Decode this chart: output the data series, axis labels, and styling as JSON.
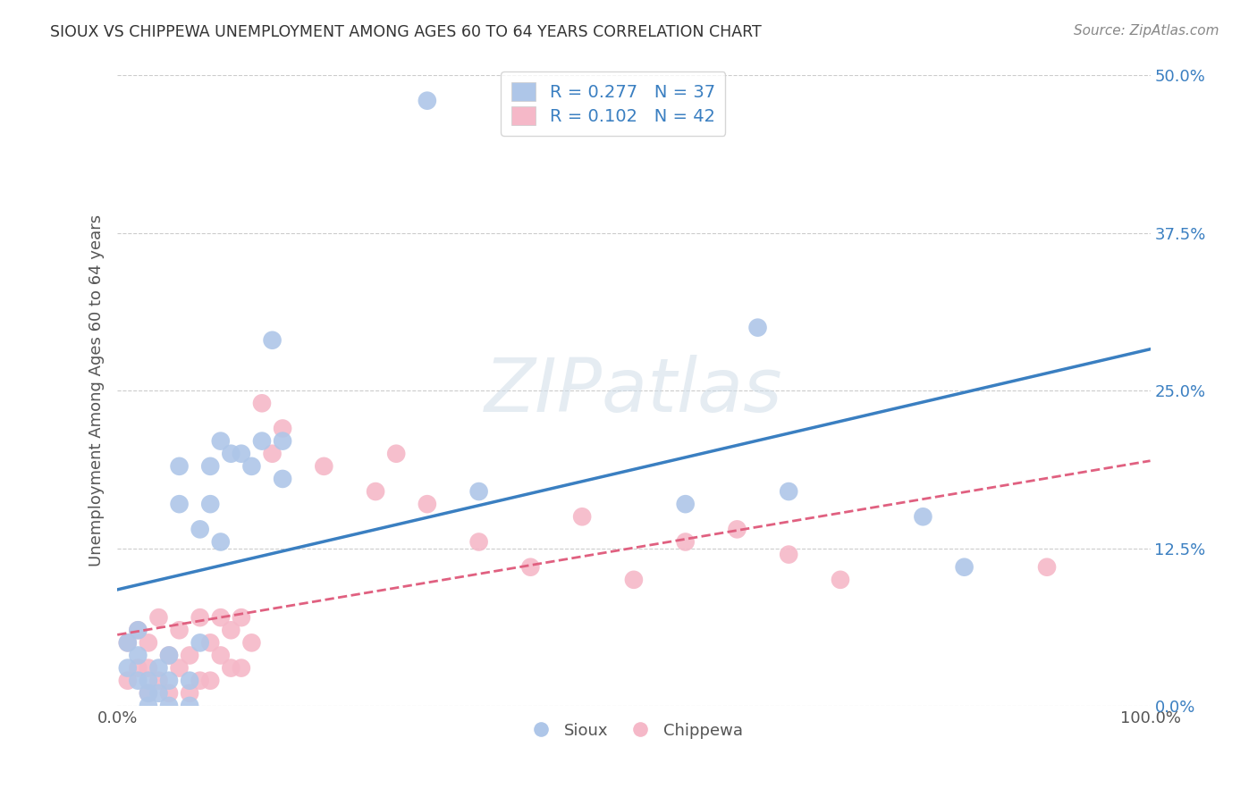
{
  "title": "SIOUX VS CHIPPEWA UNEMPLOYMENT AMONG AGES 60 TO 64 YEARS CORRELATION CHART",
  "source": "Source: ZipAtlas.com",
  "ylabel": "Unemployment Among Ages 60 to 64 years",
  "xlim": [
    0,
    1.0
  ],
  "ylim": [
    0,
    0.5
  ],
  "ytick_labels": [
    "0.0%",
    "12.5%",
    "25.0%",
    "37.5%",
    "50.0%"
  ],
  "ytick_vals": [
    0.0,
    0.125,
    0.25,
    0.375,
    0.5
  ],
  "xtick_labels": [
    "0.0%",
    "100.0%"
  ],
  "xtick_vals": [
    0.0,
    1.0
  ],
  "background_color": "#ffffff",
  "grid_color": "#cccccc",
  "watermark_text": "ZIPatlas",
  "sioux_color": "#aec6e8",
  "sioux_line_color": "#3a7fc1",
  "chippewa_color": "#f5b8c8",
  "chippewa_line_color": "#e06080",
  "legend_text_color": "#3a7fc1",
  "sioux_R": 0.277,
  "sioux_N": 37,
  "chippewa_R": 0.102,
  "chippewa_N": 42,
  "sioux_x": [
    0.01,
    0.01,
    0.02,
    0.02,
    0.02,
    0.03,
    0.03,
    0.03,
    0.04,
    0.04,
    0.05,
    0.05,
    0.05,
    0.06,
    0.06,
    0.07,
    0.07,
    0.08,
    0.08,
    0.09,
    0.09,
    0.1,
    0.1,
    0.11,
    0.12,
    0.13,
    0.14,
    0.15,
    0.16,
    0.16,
    0.3,
    0.35,
    0.55,
    0.62,
    0.65,
    0.78,
    0.82
  ],
  "sioux_y": [
    0.03,
    0.05,
    0.02,
    0.04,
    0.06,
    0.0,
    0.01,
    0.02,
    0.01,
    0.03,
    0.0,
    0.02,
    0.04,
    0.16,
    0.19,
    0.0,
    0.02,
    0.05,
    0.14,
    0.16,
    0.19,
    0.13,
    0.21,
    0.2,
    0.2,
    0.19,
    0.21,
    0.29,
    0.18,
    0.21,
    0.48,
    0.17,
    0.16,
    0.3,
    0.17,
    0.15,
    0.11
  ],
  "chippewa_x": [
    0.01,
    0.01,
    0.02,
    0.02,
    0.03,
    0.03,
    0.03,
    0.04,
    0.04,
    0.05,
    0.05,
    0.06,
    0.06,
    0.07,
    0.07,
    0.08,
    0.08,
    0.09,
    0.09,
    0.1,
    0.1,
    0.11,
    0.11,
    0.12,
    0.12,
    0.13,
    0.14,
    0.15,
    0.16,
    0.2,
    0.25,
    0.27,
    0.3,
    0.35,
    0.4,
    0.45,
    0.5,
    0.55,
    0.6,
    0.65,
    0.7,
    0.9
  ],
  "chippewa_y": [
    0.02,
    0.05,
    0.03,
    0.06,
    0.01,
    0.03,
    0.05,
    0.02,
    0.07,
    0.01,
    0.04,
    0.03,
    0.06,
    0.01,
    0.04,
    0.02,
    0.07,
    0.02,
    0.05,
    0.04,
    0.07,
    0.03,
    0.06,
    0.03,
    0.07,
    0.05,
    0.24,
    0.2,
    0.22,
    0.19,
    0.17,
    0.2,
    0.16,
    0.13,
    0.11,
    0.15,
    0.1,
    0.13,
    0.14,
    0.12,
    0.1,
    0.11
  ]
}
